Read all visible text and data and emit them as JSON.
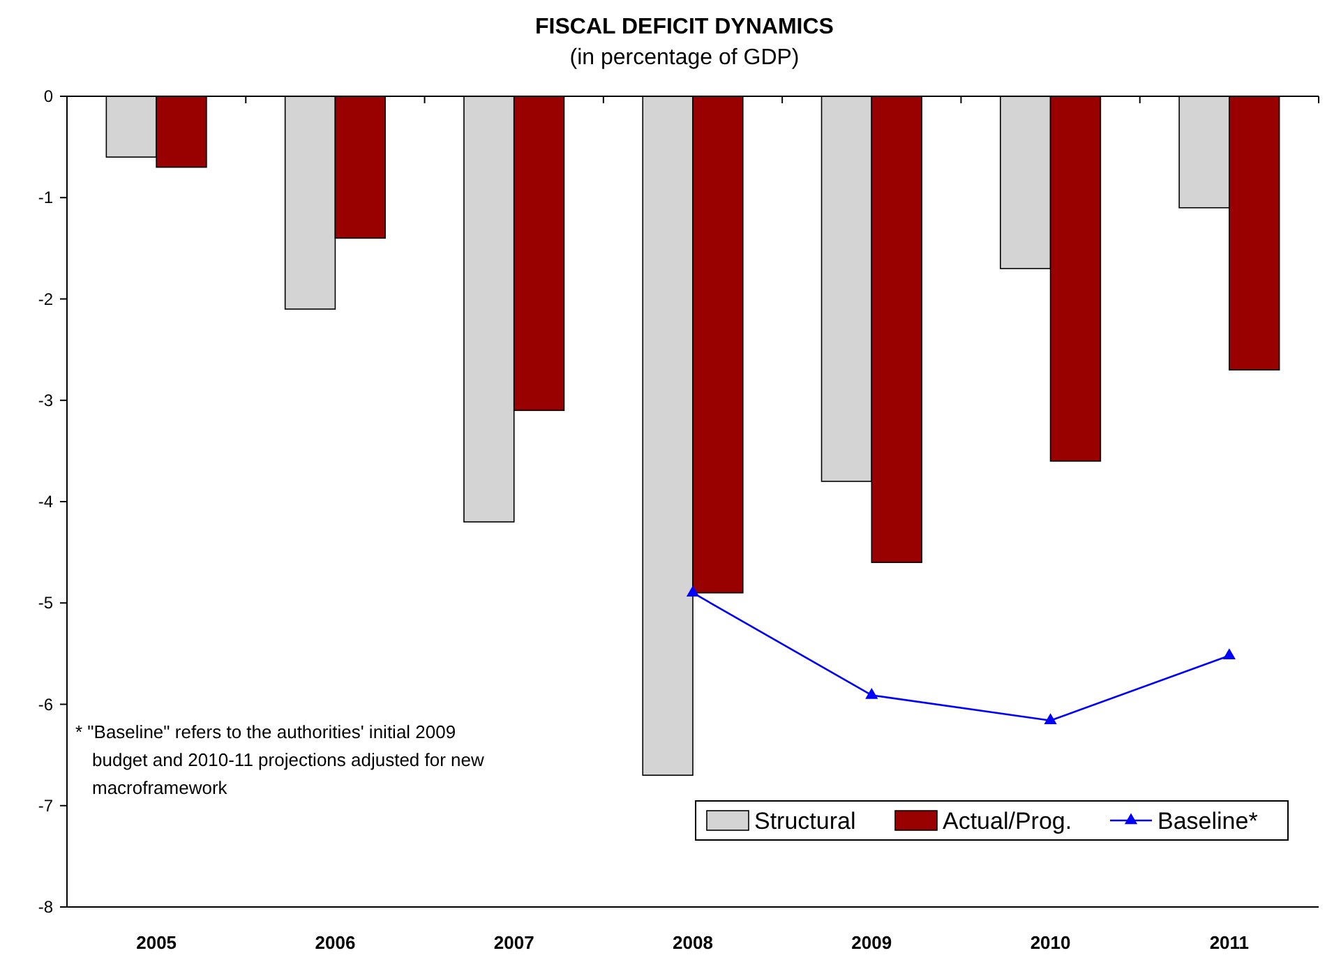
{
  "chart_data": {
    "type": "bar",
    "title": "FISCAL DEFICIT DYNAMICS",
    "subtitle": "(in percentage of GDP)",
    "categories": [
      "2005",
      "2006",
      "2007",
      "2008",
      "2009",
      "2010",
      "2011"
    ],
    "series": [
      {
        "name": "Structural",
        "color": "#d4d4d4",
        "values": [
          -0.6,
          -2.1,
          -4.2,
          -6.7,
          -3.8,
          -1.7,
          -1.1
        ]
      },
      {
        "name": "Actual/Prog.",
        "color": "#990000",
        "values": [
          -0.7,
          -1.4,
          -3.1,
          -4.9,
          -4.6,
          -3.6,
          -2.7
        ]
      },
      {
        "name": "Baseline*",
        "type": "line",
        "color": "#0000ff",
        "marker": "triangle",
        "values": [
          null,
          null,
          null,
          -4.9,
          -5.91,
          -6.16,
          -5.52
        ]
      }
    ],
    "ylim": [
      -8,
      0
    ],
    "yticks": [
      -8,
      -7,
      -6,
      -5,
      -4,
      -3,
      -2,
      -1,
      0
    ],
    "grid": false,
    "legend": "bottom right",
    "annotations": [
      "* \"Baseline\" refers to the authorities' initial 2009 budget and 2010-11 projections adjusted for new macroframework"
    ]
  }
}
